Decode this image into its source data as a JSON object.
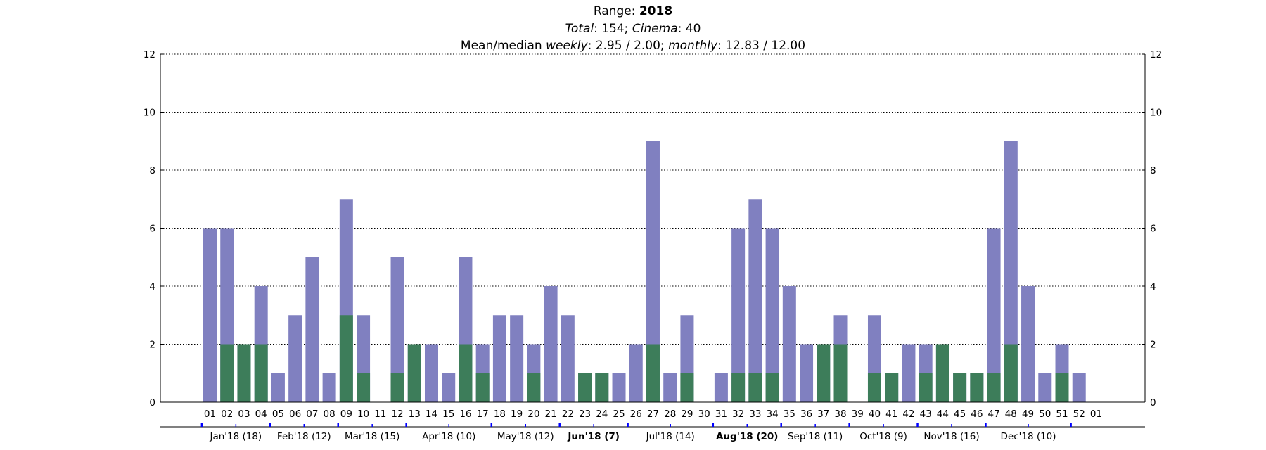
{
  "header": {
    "range_label": "Range: ",
    "range_value": "2018",
    "total_label": "Total",
    "total_value": ": 154; ",
    "cinema_label": "Cinema",
    "cinema_value": ": 40",
    "mean_prefix": "Mean/median ",
    "weekly_label": "weekly",
    "weekly_value": ": 2.95 / 2.00; ",
    "monthly_label": "monthly",
    "monthly_value": ": 12.83 / 12.00"
  },
  "chart_data": {
    "type": "bar",
    "stacked": false,
    "categories": [
      "01",
      "02",
      "03",
      "04",
      "05",
      "06",
      "07",
      "08",
      "09",
      "10",
      "11",
      "12",
      "13",
      "14",
      "15",
      "16",
      "17",
      "18",
      "19",
      "20",
      "21",
      "22",
      "23",
      "24",
      "25",
      "26",
      "27",
      "28",
      "29",
      "30",
      "31",
      "32",
      "33",
      "34",
      "35",
      "36",
      "37",
      "38",
      "39",
      "40",
      "41",
      "42",
      "43",
      "44",
      "45",
      "46",
      "47",
      "48",
      "49",
      "50",
      "51",
      "52",
      "01"
    ],
    "series": [
      {
        "values": [
          6,
          6,
          2,
          4,
          1,
          3,
          5,
          1,
          7,
          3,
          0,
          5,
          2,
          2,
          1,
          5,
          2,
          3,
          3,
          2,
          4,
          3,
          1,
          1,
          1,
          2,
          9,
          1,
          3,
          0,
          1,
          6,
          7,
          6,
          4,
          2,
          2,
          3,
          0,
          3,
          1,
          2,
          2,
          2,
          1,
          1,
          6,
          9,
          4,
          1,
          2,
          1,
          0
        ]
      },
      {
        "values": [
          0,
          2,
          2,
          2,
          0,
          0,
          0,
          0,
          3,
          1,
          0,
          1,
          2,
          0,
          0,
          2,
          1,
          0,
          0,
          1,
          0,
          0,
          1,
          1,
          0,
          0,
          2,
          0,
          1,
          0,
          0,
          1,
          1,
          1,
          0,
          0,
          2,
          2,
          0,
          1,
          1,
          0,
          1,
          2,
          1,
          1,
          1,
          2,
          0,
          0,
          1,
          0,
          0
        ]
      }
    ],
    "colors": {
      "all": "#8080c0",
      "cinema": "#3d7d5a",
      "tick": "#0000ff",
      "grid": "#000000"
    },
    "ylim": [
      0,
      12
    ],
    "yticks": [
      0,
      2,
      4,
      6,
      8,
      10,
      12
    ],
    "grid": true,
    "secondary_y_axis": true,
    "months": [
      {
        "label": "Jan'18 (18)",
        "bold": false
      },
      {
        "label": "Feb'18 (12)",
        "bold": false
      },
      {
        "label": "Mar'18 (15)",
        "bold": false
      },
      {
        "label": "Apr'18 (10)",
        "bold": false
      },
      {
        "label": "May'18 (12)",
        "bold": false
      },
      {
        "label": "Jun'18 (7)",
        "bold": true
      },
      {
        "label": "Jul'18 (14)",
        "bold": false
      },
      {
        "label": "Aug'18 (20)",
        "bold": true
      },
      {
        "label": "Sep'18 (11)",
        "bold": false
      },
      {
        "label": "Oct'18 (9)",
        "bold": false
      },
      {
        "label": "Nov'18 (16)",
        "bold": false
      },
      {
        "label": "Dec'18 (10)",
        "bold": false
      }
    ]
  }
}
